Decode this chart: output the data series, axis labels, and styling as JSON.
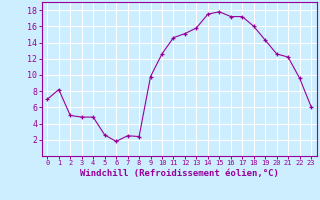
{
  "x": [
    0,
    1,
    2,
    3,
    4,
    5,
    6,
    7,
    8,
    9,
    10,
    11,
    12,
    13,
    14,
    15,
    16,
    17,
    18,
    19,
    20,
    21,
    22,
    23
  ],
  "y": [
    7,
    8.2,
    5,
    4.8,
    4.8,
    2.6,
    1.8,
    2.5,
    2.4,
    9.8,
    12.6,
    14.6,
    15.1,
    15.8,
    17.5,
    17.8,
    17.2,
    17.2,
    16.0,
    14.3,
    12.6,
    12.2,
    9.6,
    6.1
  ],
  "line_color": "#990099",
  "marker": "+",
  "marker_color": "#990099",
  "bg_color": "#cceeff",
  "grid_color": "#ffffff",
  "xlabel": "Windchill (Refroidissement éolien,°C)",
  "xlabel_color": "#990099",
  "xlim": [
    -0.5,
    23.5
  ],
  "ylim": [
    0,
    19
  ],
  "yticks": [
    2,
    4,
    6,
    8,
    10,
    12,
    14,
    16,
    18
  ],
  "xticks": [
    0,
    1,
    2,
    3,
    4,
    5,
    6,
    7,
    8,
    9,
    10,
    11,
    12,
    13,
    14,
    15,
    16,
    17,
    18,
    19,
    20,
    21,
    22,
    23
  ],
  "tick_color": "#990099"
}
